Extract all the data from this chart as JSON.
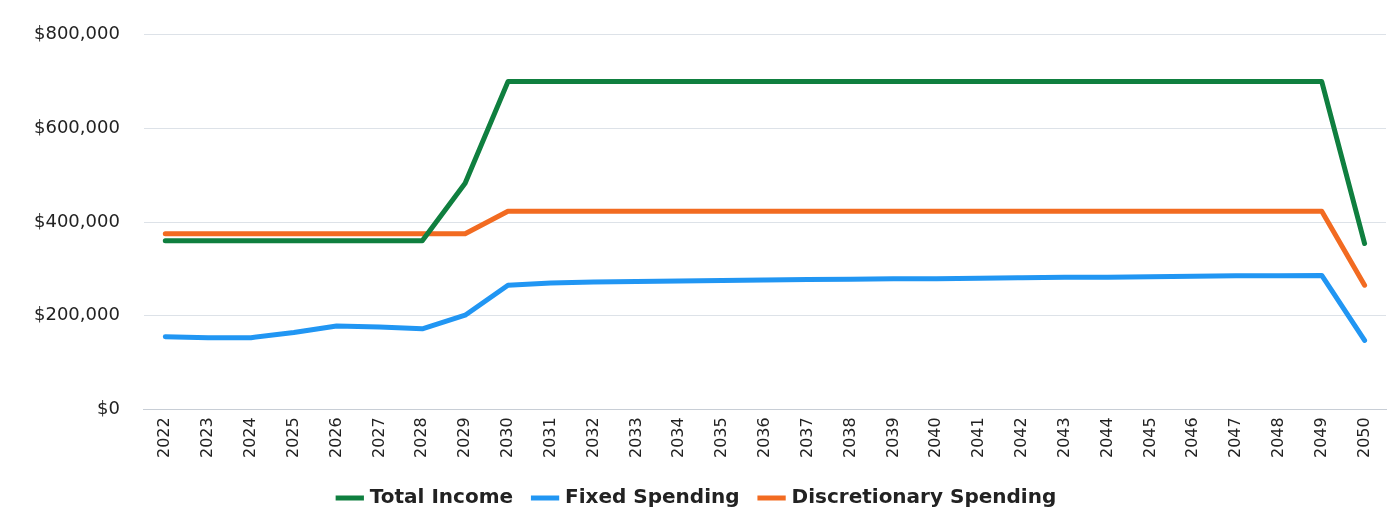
{
  "chart_data": {
    "type": "line",
    "categories": [
      "2022",
      "2023",
      "2024",
      "2025",
      "2026",
      "2027",
      "2028",
      "2029",
      "2030",
      "2031",
      "2032",
      "2033",
      "2034",
      "2035",
      "2036",
      "2037",
      "2038",
      "2039",
      "2040",
      "2041",
      "2042",
      "2043",
      "2044",
      "2045",
      "2046",
      "2047",
      "2048",
      "2049",
      "2050"
    ],
    "series": [
      {
        "name": "Total Income",
        "color": "#0f7f3f",
        "values": [
          360000,
          360000,
          360000,
          360000,
          360000,
          360000,
          360000,
          483000,
          700000,
          700000,
          700000,
          700000,
          700000,
          700000,
          700000,
          700000,
          700000,
          700000,
          700000,
          700000,
          700000,
          700000,
          700000,
          700000,
          700000,
          700000,
          700000,
          700000,
          354000
        ]
      },
      {
        "name": "Fixed Spending",
        "color": "#2196f3",
        "values": [
          155000,
          153000,
          153000,
          164000,
          178000,
          176000,
          172000,
          201000,
          265000,
          270000,
          272000,
          273000,
          274000,
          275000,
          276000,
          277000,
          278000,
          279000,
          279000,
          280000,
          281000,
          282000,
          282000,
          283000,
          284000,
          285000,
          285000,
          286000,
          147000
        ]
      },
      {
        "name": "Discretionary Spending",
        "color": "#f26b21",
        "values": [
          375000,
          375000,
          375000,
          375000,
          375000,
          375000,
          375000,
          375000,
          423000,
          423000,
          423000,
          423000,
          423000,
          423000,
          423000,
          423000,
          423000,
          423000,
          423000,
          423000,
          423000,
          423000,
          423000,
          423000,
          423000,
          423000,
          423000,
          423000,
          265000
        ]
      }
    ],
    "ylim": [
      0,
      800000
    ],
    "yticks": [
      {
        "value": 0,
        "label": "$0"
      },
      {
        "value": 200000,
        "label": "$200,000"
      },
      {
        "value": 400000,
        "label": "$400,000"
      },
      {
        "value": 600000,
        "label": "$600,000"
      },
      {
        "value": 800000,
        "label": "$800,000"
      }
    ],
    "grid": "y",
    "legend": "bottom",
    "marker": "none",
    "line_style": "solid"
  }
}
